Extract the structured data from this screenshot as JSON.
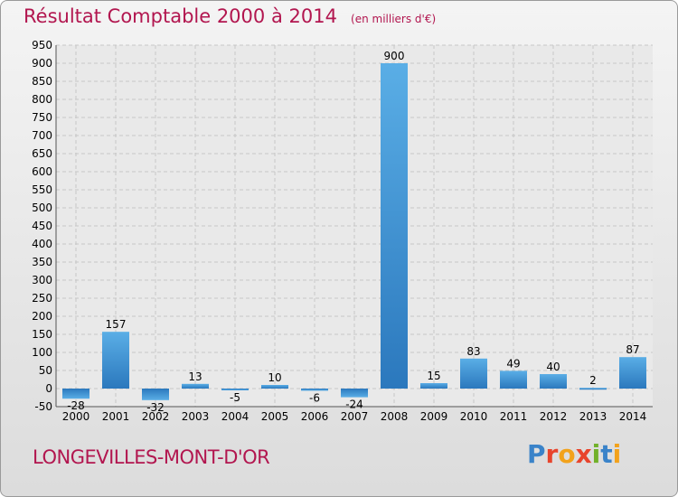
{
  "header": {
    "title": "Résultat Comptable 2000 à 2014",
    "subtitle": "(en milliers d'€)"
  },
  "commune": "LONGEVILLES-MONT-D'OR",
  "logo": {
    "text": "Proxiti"
  },
  "colors": {
    "title": "#b2164f",
    "bar_top": "#5aaee6",
    "bar_bottom": "#2b78bd"
  },
  "chart_data": {
    "type": "bar",
    "title": "Résultat Comptable 2000 à 2014",
    "subtitle": "(en milliers d'€)",
    "xlabel": "",
    "ylabel": "",
    "ylim": [
      -50,
      950
    ],
    "yticks": [
      -50,
      0,
      50,
      100,
      150,
      200,
      250,
      300,
      350,
      400,
      450,
      500,
      550,
      600,
      650,
      700,
      750,
      800,
      850,
      900,
      950
    ],
    "grid": true,
    "categories": [
      "2000",
      "2001",
      "2002",
      "2003",
      "2004",
      "2005",
      "2006",
      "2007",
      "2008",
      "2009",
      "2010",
      "2011",
      "2012",
      "2013",
      "2014"
    ],
    "values": [
      -28,
      157,
      -32,
      13,
      -5,
      10,
      -6,
      -24,
      900,
      15,
      83,
      49,
      40,
      2,
      87
    ]
  }
}
